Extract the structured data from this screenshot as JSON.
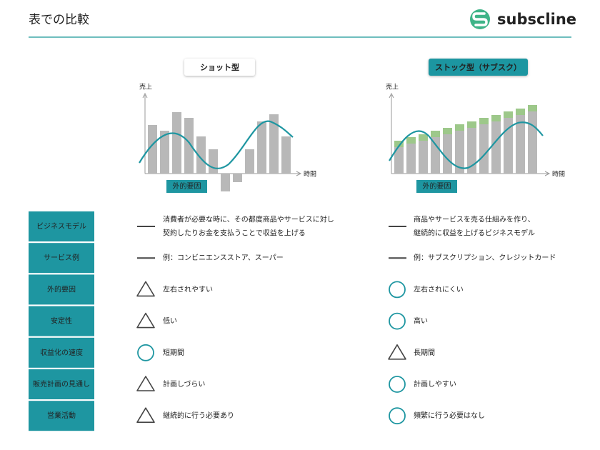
{
  "header": {
    "title": "表での比較",
    "logo": "subscline"
  },
  "charts": [
    {
      "badge": "ショット型",
      "y_label": "売上",
      "x_label": "時間",
      "annotation": "外的要因",
      "color": "#b8b8b8",
      "values": [
        68,
        60,
        86,
        78,
        52,
        34,
        -25,
        -12,
        34,
        73,
        83,
        52
      ]
    },
    {
      "badge": "ストック型（サブスク）",
      "y_label": "売上",
      "x_label": "時間",
      "annotation": "外的要因",
      "series": [
        {
          "color": "#b8b8b8",
          "values": [
            37,
            42,
            46,
            51,
            55,
            60,
            64,
            69,
            73,
            78,
            82,
            87
          ]
        },
        {
          "color": "#9dc88a",
          "values": [
            9,
            9,
            9,
            9,
            9,
            9,
            9,
            9,
            9,
            9,
            9,
            9
          ]
        }
      ]
    }
  ],
  "table": {
    "rows": [
      {
        "label": "ビジネスモデル",
        "left": {
          "symbol": "dash",
          "text": [
            "消費者が必要な時に、その都度商品やサービスに対し",
            "契約したりお金を支払うことで収益を上げる"
          ]
        },
        "right": {
          "symbol": "dash",
          "text": [
            "商品やサービスを売る仕組みを作り、",
            "継続的に収益を上げるビジネスモデル"
          ]
        }
      },
      {
        "label": "サービス例",
        "left": {
          "symbol": "dash",
          "text": [
            "例：コンビニエンスストア、スーパー"
          ]
        },
        "right": {
          "symbol": "dash",
          "text": [
            "例：サブスクリプション、クレジットカード"
          ]
        }
      },
      {
        "label": "外的要因",
        "left": {
          "symbol": "triangle",
          "text": [
            "左右されやすい"
          ]
        },
        "right": {
          "symbol": "circle",
          "text": [
            "左右されにくい"
          ]
        }
      },
      {
        "label": "安定性",
        "left": {
          "symbol": "triangle",
          "text": [
            "低い"
          ]
        },
        "right": {
          "symbol": "circle",
          "text": [
            "高い"
          ]
        }
      },
      {
        "label": "収益化の速度",
        "left": {
          "symbol": "circle",
          "text": [
            "短期間"
          ]
        },
        "right": {
          "symbol": "triangle",
          "text": [
            "長期間"
          ]
        }
      },
      {
        "label": "販売計画の見通し",
        "left": {
          "symbol": "triangle",
          "text": [
            "計画しづらい"
          ]
        },
        "right": {
          "symbol": "circle",
          "text": [
            "計画しやすい"
          ]
        }
      },
      {
        "label": "営業活動",
        "left": {
          "symbol": "triangle",
          "text": [
            "継続的に行う必要あり"
          ]
        },
        "right": {
          "symbol": "circle",
          "text": [
            "頻繁に行う必要はなし"
          ]
        }
      }
    ]
  }
}
